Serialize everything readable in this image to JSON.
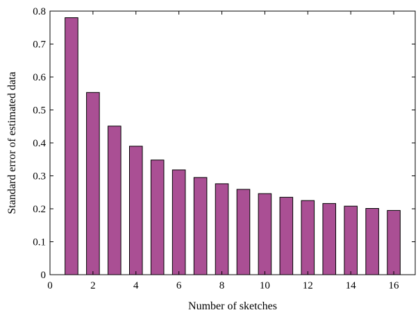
{
  "chart_data": {
    "type": "bar",
    "title": "",
    "xlabel": "Number of sketches",
    "ylabel": "Standard error of estimated data",
    "x": [
      1,
      2,
      3,
      4,
      5,
      6,
      7,
      8,
      9,
      10,
      11,
      12,
      13,
      14,
      15,
      16
    ],
    "values": [
      0.78,
      0.553,
      0.451,
      0.39,
      0.348,
      0.318,
      0.295,
      0.276,
      0.259,
      0.246,
      0.235,
      0.225,
      0.216,
      0.208,
      0.201,
      0.195
    ],
    "xlim": [
      0,
      17
    ],
    "ylim": [
      0,
      0.8
    ],
    "xticks": [
      0,
      2,
      4,
      6,
      8,
      10,
      12,
      14,
      16
    ],
    "yticks": [
      0,
      0.1,
      0.2,
      0.3,
      0.4,
      0.5,
      0.6,
      0.7,
      0.8
    ],
    "xtick_labels": [
      "0",
      "2",
      "4",
      "6",
      "8",
      "10",
      "12",
      "14",
      "16"
    ],
    "ytick_labels": [
      "0",
      "0.1",
      "0.2",
      "0.3",
      "0.4",
      "0.5",
      "0.6",
      "0.7",
      "0.8"
    ],
    "bar_color": "#aa4f94",
    "bar_edge_color": "#000000",
    "grid": false,
    "legend": "none"
  }
}
